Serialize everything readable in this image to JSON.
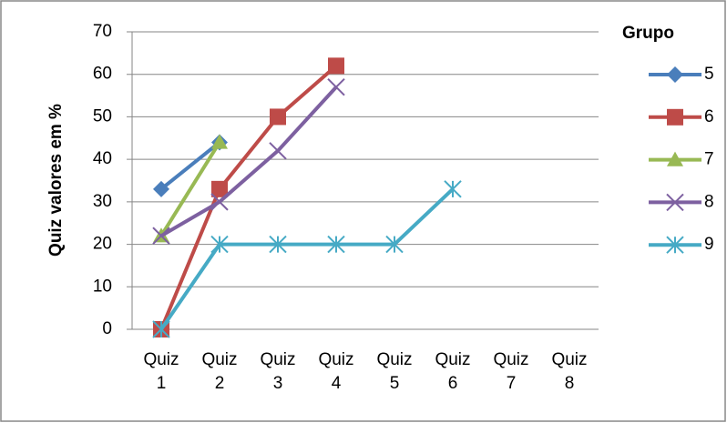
{
  "chart_data": {
    "type": "line",
    "y_label": "Quiz valores em %",
    "legend_title": "Grupo",
    "categories": [
      "Quiz 1",
      "Quiz 2",
      "Quiz 3",
      "Quiz 4",
      "Quiz 5",
      "Quiz 6",
      "Quiz 7",
      "Quiz 8"
    ],
    "series": [
      {
        "name": "5",
        "color": "#4a7ebb",
        "marker": "diamond",
        "values": [
          33,
          44,
          null,
          null,
          null,
          null,
          null,
          null
        ]
      },
      {
        "name": "6",
        "color": "#be4b48",
        "marker": "square",
        "values": [
          0,
          33,
          50,
          62,
          null,
          null,
          null,
          null
        ]
      },
      {
        "name": "7",
        "color": "#98b954",
        "marker": "triangle",
        "values": [
          22,
          44,
          null,
          null,
          null,
          null,
          null,
          null
        ]
      },
      {
        "name": "8",
        "color": "#7d60a0",
        "marker": "x",
        "values": [
          22,
          30,
          42,
          57,
          null,
          null,
          null,
          null
        ]
      },
      {
        "name": "9",
        "color": "#46aac5",
        "marker": "asterisk",
        "values": [
          0,
          20,
          20,
          20,
          20,
          33,
          null,
          null
        ]
      }
    ],
    "ylim": [
      0,
      70
    ],
    "yticks": [
      0,
      10,
      20,
      30,
      40,
      50,
      60,
      70
    ],
    "grid": true,
    "legend": "right"
  }
}
